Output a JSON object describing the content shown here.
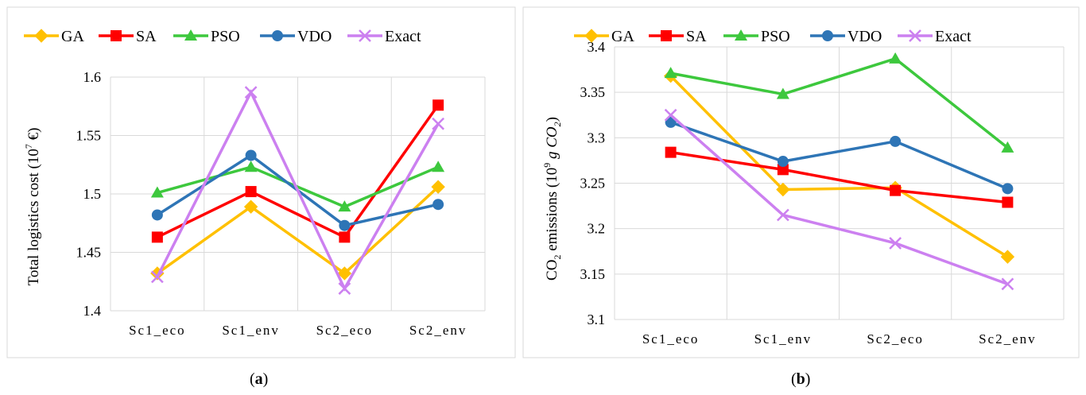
{
  "colors": {
    "GA": "#FFC000",
    "SA": "#FF0000",
    "PSO": "#3DC83D",
    "VDO": "#2E75B6",
    "Exact": "#CC80F0"
  },
  "captions": {
    "a": "a",
    "b": "b"
  },
  "chart_data": [
    {
      "type": "line",
      "ylabel_main": "Total logistics cost (10",
      "ylabel_sup": "7",
      "ylabel_tail": " €)",
      "categories": [
        "Sc1_eco",
        "Sc1_env",
        "Sc2_eco",
        "Sc2_env"
      ],
      "ylim": [
        1.4,
        1.6
      ],
      "yticks": [
        "1.4",
        "1.45",
        "1.5",
        "1.55",
        "1.6"
      ],
      "grid": true,
      "legend": "top",
      "series": [
        {
          "name": "GA",
          "marker": "diamond",
          "values": [
            1.432,
            1.489,
            1.432,
            1.506
          ]
        },
        {
          "name": "SA",
          "marker": "square",
          "values": [
            1.463,
            1.502,
            1.463,
            1.576
          ]
        },
        {
          "name": "PSO",
          "marker": "triangle",
          "values": [
            1.501,
            1.523,
            1.489,
            1.523
          ]
        },
        {
          "name": "VDO",
          "marker": "circle",
          "values": [
            1.482,
            1.533,
            1.473,
            1.491
          ]
        },
        {
          "name": "Exact",
          "marker": "x",
          "values": [
            1.429,
            1.587,
            1.419,
            1.56
          ]
        }
      ]
    },
    {
      "type": "line",
      "ylabel_main": "CO",
      "ylabel_sub": "2",
      "ylabel_mid": " emissions (10",
      "ylabel_sup": "9",
      "ylabel_g": " g CO",
      "ylabel_sub2": "2",
      "ylabel_tail": ")",
      "categories": [
        "Sc1_eco",
        "Sc1_env",
        "Sc2_eco",
        "Sc2_env"
      ],
      "ylim": [
        3.1,
        3.4
      ],
      "yticks": [
        "3.1",
        "3.15",
        "3.2",
        "3.25",
        "3.3",
        "3.35",
        "3.4"
      ],
      "grid": true,
      "legend": "top",
      "series": [
        {
          "name": "GA",
          "marker": "diamond",
          "values": [
            3.368,
            3.243,
            3.245,
            3.169
          ]
        },
        {
          "name": "SA",
          "marker": "square",
          "values": [
            3.284,
            3.265,
            3.242,
            3.229
          ]
        },
        {
          "name": "PSO",
          "marker": "triangle",
          "values": [
            3.371,
            3.348,
            3.387,
            3.289
          ]
        },
        {
          "name": "VDO",
          "marker": "circle",
          "values": [
            3.317,
            3.274,
            3.296,
            3.244
          ]
        },
        {
          "name": "Exact",
          "marker": "x",
          "values": [
            3.325,
            3.215,
            3.184,
            3.139
          ]
        }
      ]
    }
  ]
}
